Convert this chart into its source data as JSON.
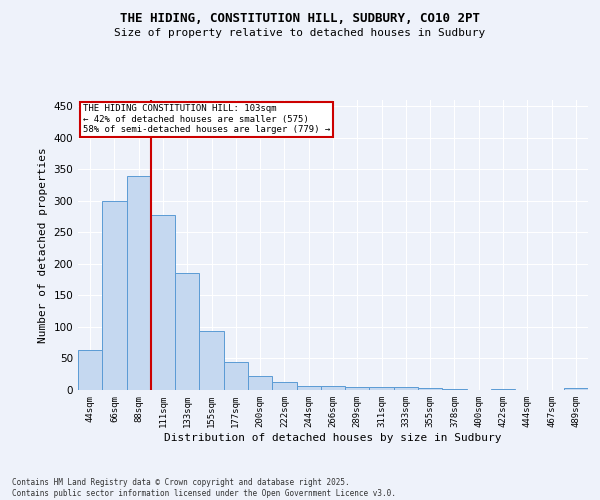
{
  "title1": "THE HIDING, CONSTITUTION HILL, SUDBURY, CO10 2PT",
  "title2": "Size of property relative to detached houses in Sudbury",
  "xlabel": "Distribution of detached houses by size in Sudbury",
  "ylabel": "Number of detached properties",
  "categories": [
    "44sqm",
    "66sqm",
    "88sqm",
    "111sqm",
    "133sqm",
    "155sqm",
    "177sqm",
    "200sqm",
    "222sqm",
    "244sqm",
    "266sqm",
    "289sqm",
    "311sqm",
    "333sqm",
    "355sqm",
    "378sqm",
    "400sqm",
    "422sqm",
    "444sqm",
    "467sqm",
    "489sqm"
  ],
  "values": [
    63,
    300,
    340,
    278,
    185,
    93,
    45,
    22,
    12,
    7,
    6,
    5,
    4,
    5,
    3,
    2,
    0,
    2,
    0,
    0,
    3
  ],
  "bar_color": "#c5d8f0",
  "bar_edge_color": "#5b9bd5",
  "vline_x": 2.5,
  "annotation_title": "THE HIDING CONSTITUTION HILL: 103sqm",
  "annotation_line1": "← 42% of detached houses are smaller (575)",
  "annotation_line2": "58% of semi-detached houses are larger (779) →",
  "annotation_box_color": "#ffffff",
  "annotation_box_edge": "#cc0000",
  "vline_color": "#cc0000",
  "ylim": [
    0,
    460
  ],
  "yticks": [
    0,
    50,
    100,
    150,
    200,
    250,
    300,
    350,
    400,
    450
  ],
  "footer1": "Contains HM Land Registry data © Crown copyright and database right 2025.",
  "footer2": "Contains public sector information licensed under the Open Government Licence v3.0.",
  "bg_color": "#eef2fa",
  "grid_color": "#ffffff"
}
